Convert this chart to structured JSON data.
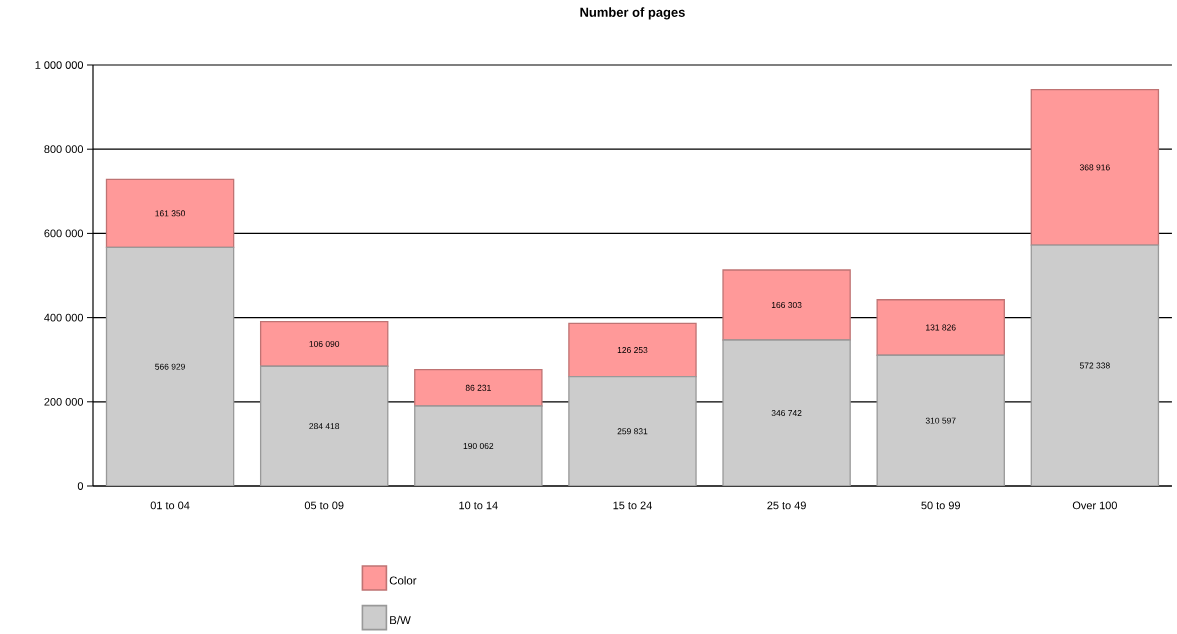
{
  "chart_data": {
    "type": "bar",
    "stacked": true,
    "title": "Number of pages",
    "categories": [
      "01 to 04",
      "05 to 09",
      "10 to 14",
      "15 to 24",
      "25 to 49",
      "50 to 99",
      "Over 100"
    ],
    "series": [
      {
        "name": "B/W",
        "color": "#cccccc",
        "values": [
          566929,
          284418,
          190062,
          259831,
          346742,
          310597,
          572338
        ],
        "value_labels": [
          "566 929",
          "284 418",
          "190 062",
          "259 831",
          "346 742",
          "310 597",
          "572 338"
        ]
      },
      {
        "name": "Color",
        "color": "#ff9999",
        "values": [
          161350,
          106090,
          86231,
          126253,
          166303,
          131826,
          368916
        ],
        "value_labels": [
          "161 350",
          "106 090",
          "86 231",
          "126 253",
          "166 303",
          "131 826",
          "368 916"
        ]
      }
    ],
    "ylim": [
      0,
      1000000
    ],
    "yticks": [
      0,
      {
        "value": 200000,
        "label": "200 000"
      },
      {
        "value": 400000,
        "label": "400 000"
      },
      {
        "value": 600000,
        "label": "600 000"
      },
      {
        "value": 800000,
        "label": "800 000"
      },
      {
        "value": 1000000,
        "label": "1 000 000"
      }
    ],
    "grid": "y",
    "legend": "bottom"
  }
}
